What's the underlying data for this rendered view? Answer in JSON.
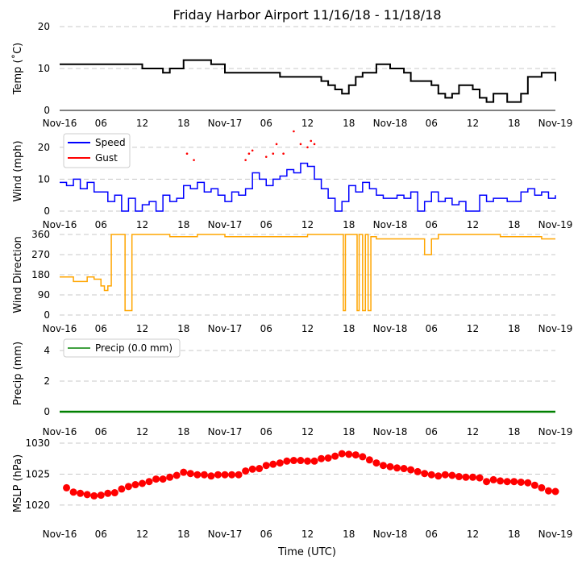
{
  "title": "Friday Harbor Airport 11/16/18 - 11/18/18",
  "x_axis_label": "Time (UTC)",
  "x_tick_labels": [
    "Nov-16",
    "06",
    "12",
    "18",
    "Nov-17",
    "06",
    "12",
    "18",
    "Nov-18",
    "06",
    "12",
    "18",
    "Nov-19"
  ],
  "colors": {
    "temp": "#000000",
    "speed": "#0000ff",
    "gust": "#ff0000",
    "direction": "#ffa500",
    "precip": "#008000",
    "mslp": "#ff0000",
    "grid": "#c8c8c8"
  },
  "chart_data": [
    {
      "type": "line",
      "name": "temperature",
      "ylabel": "Temp ($^\\circ$C)",
      "ylabel_display": "Temp (˚C)",
      "ylim": [
        0,
        20
      ],
      "yticks": [
        0,
        10,
        20
      ],
      "xlim_hours": [
        0,
        72
      ],
      "x_hours": [
        0,
        4,
        8,
        10,
        12,
        14,
        15,
        16,
        17,
        18,
        21,
        22,
        23,
        24,
        27,
        30,
        32,
        33,
        36,
        38,
        39,
        40,
        41,
        42,
        43,
        44,
        46,
        48,
        50,
        51,
        52,
        53,
        54,
        55,
        56,
        57,
        58,
        59,
        60,
        61,
        62,
        63,
        64,
        65,
        66,
        67,
        68,
        70,
        72
      ],
      "values": [
        11,
        11,
        11,
        11,
        10,
        10,
        9,
        10,
        10,
        12,
        12,
        11,
        11,
        9,
        9,
        9,
        8,
        8,
        8,
        7,
        6,
        5,
        4,
        6,
        8,
        9,
        11,
        10,
        9,
        7,
        7,
        7,
        6,
        4,
        3,
        4,
        6,
        6,
        5,
        3,
        2,
        4,
        4,
        2,
        2,
        4,
        8,
        9,
        7
      ]
    },
    {
      "type": "line",
      "name": "wind",
      "ylabel": "Wind (mph)",
      "ylim": [
        0,
        25
      ],
      "yticks": [
        0,
        10,
        20
      ],
      "legend": [
        "Speed",
        "Gust"
      ],
      "series": [
        {
          "name": "Speed",
          "x_hours": [
            0,
            1,
            2,
            3,
            4,
            5,
            6,
            7,
            8,
            9,
            10,
            11,
            12,
            13,
            14,
            15,
            16,
            17,
            18,
            19,
            20,
            21,
            22,
            23,
            24,
            25,
            26,
            27,
            28,
            29,
            30,
            31,
            32,
            33,
            34,
            35,
            36,
            37,
            38,
            39,
            40,
            41,
            42,
            43,
            44,
            45,
            46,
            47,
            48,
            49,
            50,
            51,
            52,
            53,
            54,
            55,
            56,
            57,
            58,
            59,
            60,
            61,
            62,
            63,
            64,
            65,
            66,
            67,
            68,
            69,
            70,
            71,
            72
          ],
          "values": [
            9,
            8,
            10,
            7,
            9,
            6,
            6,
            3,
            5,
            0,
            4,
            0,
            2,
            3,
            0,
            5,
            3,
            4,
            8,
            7,
            9,
            6,
            7,
            5,
            3,
            6,
            5,
            7,
            12,
            10,
            8,
            10,
            11,
            13,
            12,
            15,
            14,
            10,
            7,
            4,
            0,
            3,
            8,
            6,
            9,
            7,
            5,
            4,
            4,
            5,
            4,
            6,
            0,
            3,
            6,
            3,
            4,
            2,
            3,
            0,
            0,
            5,
            3,
            4,
            4,
            3,
            3,
            6,
            7,
            5,
            6,
            4,
            5
          ]
        },
        {
          "name": "Gust",
          "x_hours": [
            18.5,
            19.5,
            27,
            27.5,
            28,
            30,
            31,
            31.5,
            32.5,
            34,
            35,
            36,
            36.5,
            37
          ],
          "values": [
            18,
            16,
            16,
            18,
            19,
            17,
            18,
            21,
            18,
            25,
            21,
            20,
            22,
            21
          ]
        }
      ]
    },
    {
      "type": "line",
      "name": "wind_direction",
      "ylabel": "Wind Direction",
      "ylim": [
        0,
        360
      ],
      "yticks": [
        0,
        90,
        180,
        270,
        360
      ],
      "x_hours": [
        0,
        2,
        4,
        5,
        6,
        6.5,
        7,
        7.5,
        8,
        9,
        9.5,
        10,
        10.5,
        11,
        16,
        20,
        24,
        30,
        36,
        41,
        41.2,
        41.5,
        42,
        43,
        43.2,
        43.5,
        44,
        44.4,
        44.8,
        45.2,
        46,
        52,
        53,
        54,
        55,
        58,
        64,
        68,
        70,
        72
      ],
      "values": [
        170,
        150,
        170,
        160,
        130,
        110,
        130,
        360,
        360,
        360,
        20,
        20,
        360,
        360,
        350,
        360,
        350,
        350,
        360,
        360,
        20,
        360,
        360,
        360,
        20,
        360,
        20,
        360,
        20,
        350,
        340,
        340,
        270,
        340,
        360,
        360,
        350,
        350,
        340,
        340
      ]
    },
    {
      "type": "line",
      "name": "precipitation",
      "ylabel": "Precip (mm)",
      "ylim": [
        0,
        5
      ],
      "yticks": [
        0,
        2,
        4
      ],
      "legend": [
        "Precip (0.0 mm)"
      ],
      "x_hours": [
        0,
        72
      ],
      "values": [
        0,
        0
      ]
    },
    {
      "type": "scatter",
      "name": "mslp",
      "ylabel": "MSLP (hPa)",
      "ylim": [
        1017,
        1030
      ],
      "yticks": [
        1020,
        1025,
        1030
      ],
      "x_hours": [
        1,
        2,
        3,
        4,
        5,
        6,
        7,
        8,
        9,
        10,
        11,
        12,
        13,
        14,
        15,
        16,
        17,
        18,
        19,
        20,
        21,
        22,
        23,
        24,
        25,
        26,
        27,
        28,
        29,
        30,
        31,
        32,
        33,
        34,
        35,
        36,
        37,
        38,
        39,
        40,
        41,
        42,
        43,
        44,
        45,
        46,
        47,
        48,
        49,
        50,
        51,
        52,
        53,
        54,
        55,
        56,
        57,
        58,
        59,
        60,
        61,
        62,
        63,
        64,
        65,
        66,
        67,
        68,
        69,
        70,
        71,
        72
      ],
      "values": [
        1022.8,
        1022.1,
        1021.9,
        1021.7,
        1021.5,
        1021.6,
        1021.9,
        1022.0,
        1022.6,
        1023.0,
        1023.3,
        1023.5,
        1023.8,
        1024.2,
        1024.2,
        1024.5,
        1024.8,
        1025.3,
        1025.1,
        1024.9,
        1024.9,
        1024.7,
        1024.9,
        1024.9,
        1024.9,
        1024.9,
        1025.5,
        1025.8,
        1025.9,
        1026.4,
        1026.6,
        1026.8,
        1027.1,
        1027.2,
        1027.2,
        1027.1,
        1027.1,
        1027.5,
        1027.6,
        1027.9,
        1028.3,
        1028.2,
        1028.1,
        1027.8,
        1027.3,
        1026.8,
        1026.4,
        1026.2,
        1026.0,
        1025.9,
        1025.7,
        1025.4,
        1025.1,
        1024.9,
        1024.7,
        1024.9,
        1024.8,
        1024.6,
        1024.5,
        1024.5,
        1024.4,
        1023.8,
        1024.1,
        1023.9,
        1023.8,
        1023.8,
        1023.7,
        1023.6,
        1023.2,
        1022.8,
        1022.3,
        1022.2
      ]
    }
  ]
}
